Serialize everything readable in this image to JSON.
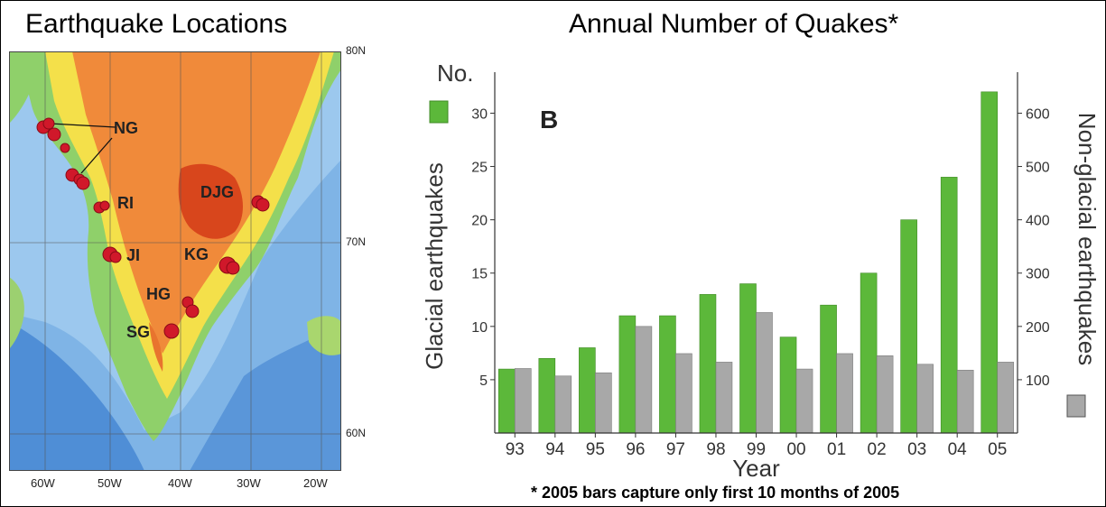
{
  "map": {
    "title": "Earthquake Locations",
    "lat_labels": [
      "80N",
      "70N",
      "60N"
    ],
    "lon_labels": [
      "60W",
      "50W",
      "40W",
      "30W",
      "20W"
    ],
    "regions": [
      {
        "id": "NG",
        "label": "NG"
      },
      {
        "id": "RI",
        "label": "RI"
      },
      {
        "id": "JI",
        "label": "JI"
      },
      {
        "id": "DJG",
        "label": "DJG"
      },
      {
        "id": "KG",
        "label": "KG"
      },
      {
        "id": "HG",
        "label": "HG"
      },
      {
        "id": "SG",
        "label": "SG"
      }
    ],
    "colors": {
      "ocean": "#7fb4e6",
      "coast": "#8fd06a",
      "interior": "#f08a3a",
      "summit": "#d8461c",
      "quake": "#d0182a"
    }
  },
  "chart_data": {
    "type": "bar",
    "title": "Annual Number of Quakes*",
    "panel_label": "B",
    "categories": [
      "93",
      "94",
      "95",
      "96",
      "97",
      "98",
      "99",
      "00",
      "01",
      "02",
      "03",
      "04",
      "05"
    ],
    "xlabel": "Year",
    "y_left": {
      "label": "Glacial earthquakes",
      "unit_label": "No.",
      "ticks": [
        5,
        10,
        15,
        20,
        25,
        30
      ],
      "range": [
        0,
        33
      ]
    },
    "y_right": {
      "label": "Non-glacial earthquakes",
      "ticks": [
        100,
        200,
        300,
        400,
        500,
        600
      ],
      "range": [
        0,
        660
      ]
    },
    "series": [
      {
        "name": "Glacial earthquakes",
        "axis": "left",
        "color": "#5cb83a",
        "values": [
          6,
          7,
          8,
          11,
          11,
          13,
          14,
          9,
          12,
          15,
          20,
          24,
          32
        ]
      },
      {
        "name": "Non-glacial earthquakes",
        "axis": "right",
        "color": "#a8a8a8",
        "values": [
          121,
          107,
          113,
          200,
          149,
          133,
          226,
          120,
          149,
          145,
          129,
          118,
          133
        ]
      }
    ],
    "footnote": "* 2005 bars capture only first 10 months of 2005"
  }
}
